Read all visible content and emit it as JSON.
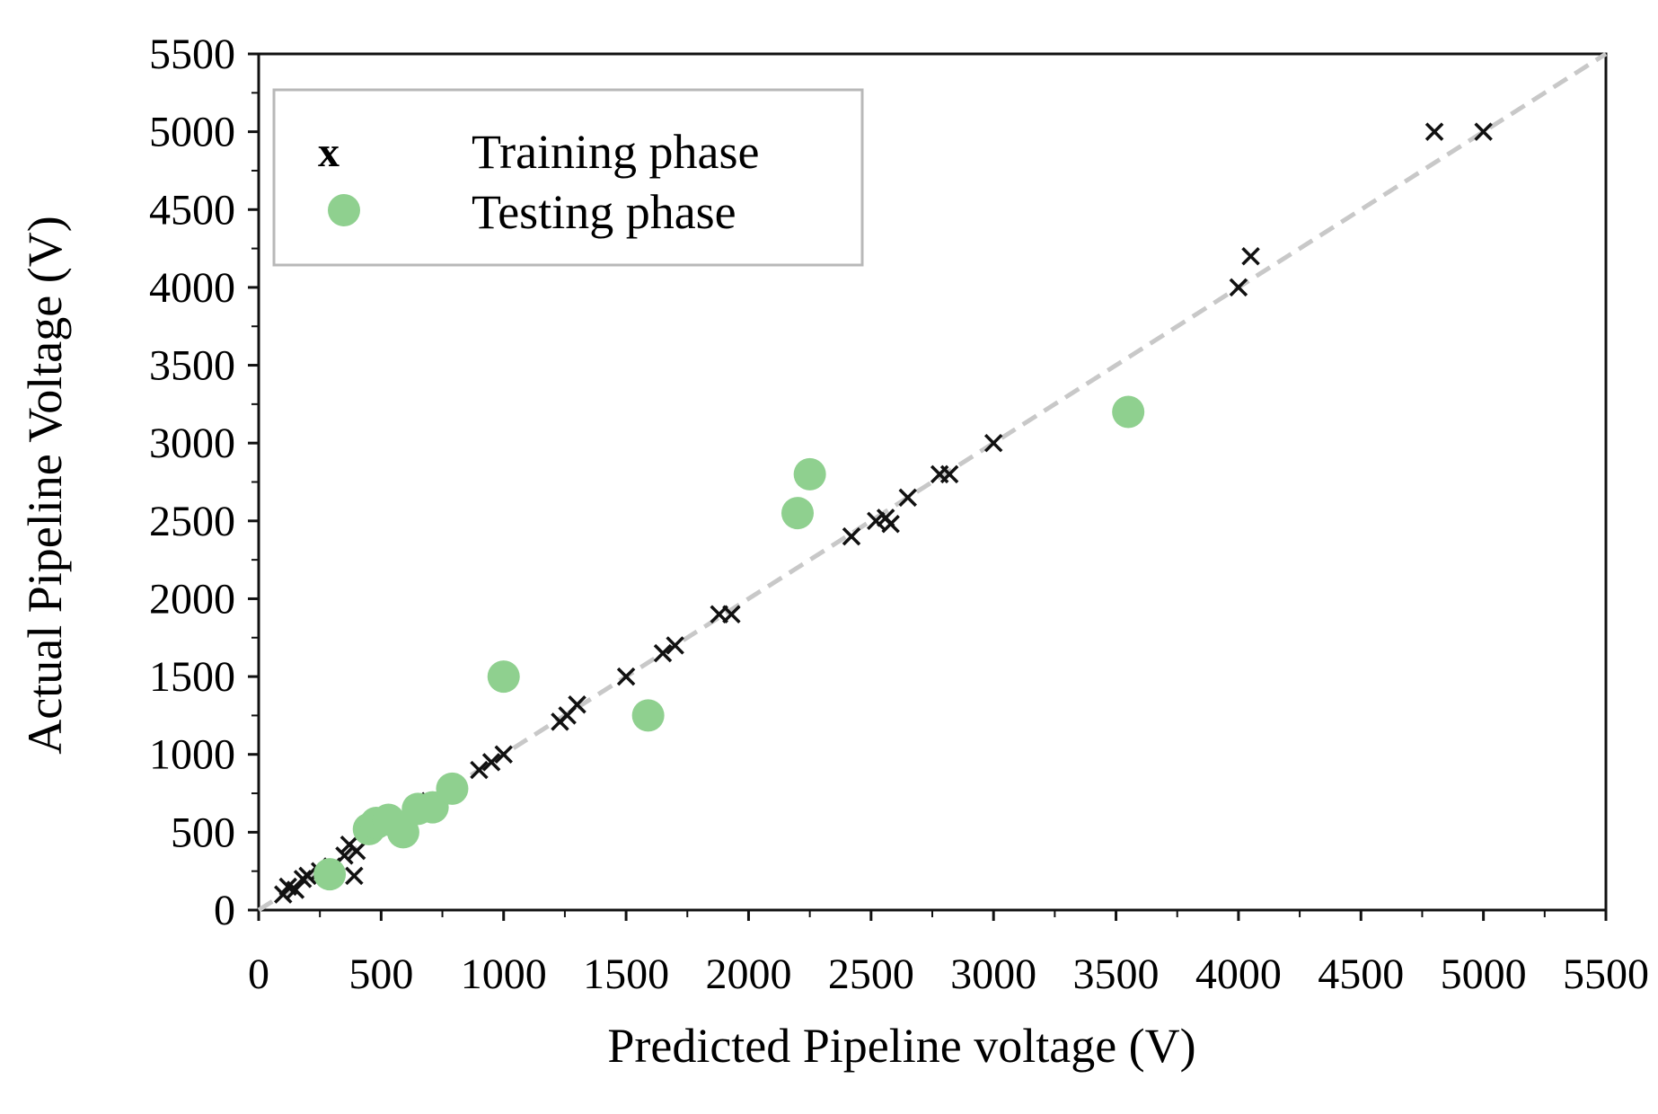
{
  "chart_data": {
    "type": "scatter",
    "title": "",
    "xlabel": "Predicted Pipeline voltage (V)",
    "ylabel": "Actual Pipeline Voltage (V)",
    "xlim": [
      0,
      5500
    ],
    "ylim": [
      0,
      5500
    ],
    "x_ticks": [
      0,
      500,
      1000,
      1500,
      2000,
      2500,
      3000,
      3500,
      4000,
      4500,
      5000,
      5500
    ],
    "y_ticks": [
      0,
      500,
      1000,
      1500,
      2000,
      2500,
      3000,
      3500,
      4000,
      4500,
      5000,
      5500
    ],
    "reference_line": {
      "from": [
        0,
        0
      ],
      "to": [
        5500,
        5500
      ],
      "style": "dashed",
      "color": "#c8c8c8"
    },
    "legend": {
      "position": "top-left",
      "entries": [
        {
          "marker": "x",
          "label": "Training phase"
        },
        {
          "marker": "●",
          "label": "Testing phase"
        }
      ]
    },
    "series": [
      {
        "name": "Training phase",
        "marker": "x",
        "color": "#111111",
        "points": [
          [
            100,
            100
          ],
          [
            120,
            150
          ],
          [
            150,
            130
          ],
          [
            180,
            200
          ],
          [
            200,
            220
          ],
          [
            250,
            250
          ],
          [
            300,
            280
          ],
          [
            350,
            350
          ],
          [
            370,
            420
          ],
          [
            400,
            380
          ],
          [
            390,
            220
          ],
          [
            600,
            550
          ],
          [
            700,
            700
          ],
          [
            900,
            900
          ],
          [
            950,
            950
          ],
          [
            1000,
            1000
          ],
          [
            1230,
            1210
          ],
          [
            1260,
            1250
          ],
          [
            1300,
            1320
          ],
          [
            1500,
            1500
          ],
          [
            1650,
            1650
          ],
          [
            1700,
            1700
          ],
          [
            1880,
            1900
          ],
          [
            1930,
            1900
          ],
          [
            2420,
            2400
          ],
          [
            2520,
            2500
          ],
          [
            2560,
            2520
          ],
          [
            2580,
            2480
          ],
          [
            2650,
            2650
          ],
          [
            2780,
            2800
          ],
          [
            2820,
            2800
          ],
          [
            3000,
            3000
          ],
          [
            4000,
            4000
          ],
          [
            4050,
            4200
          ],
          [
            4800,
            5000
          ],
          [
            5000,
            5000
          ]
        ]
      },
      {
        "name": "Testing phase",
        "marker": "circle",
        "color": "#8fd08f",
        "points": [
          [
            290,
            230
          ],
          [
            450,
            520
          ],
          [
            480,
            560
          ],
          [
            530,
            580
          ],
          [
            590,
            500
          ],
          [
            650,
            650
          ],
          [
            710,
            660
          ],
          [
            790,
            780
          ],
          [
            1000,
            1500
          ],
          [
            1590,
            1250
          ],
          [
            2200,
            2550
          ],
          [
            2250,
            2800
          ],
          [
            3550,
            3200
          ]
        ]
      }
    ]
  }
}
